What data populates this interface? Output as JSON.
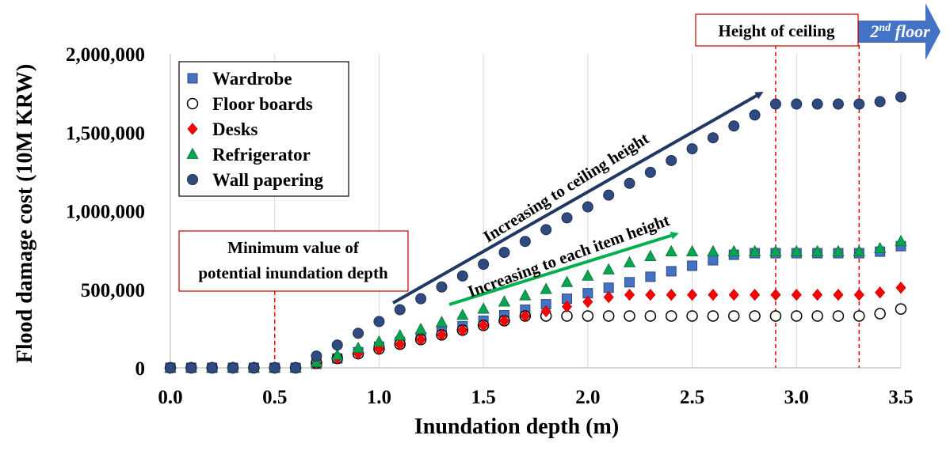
{
  "chart_data": {
    "type": "scatter",
    "xlabel": "Inundation depth (m)",
    "ylabel": "Flood damage cost (10M KRW)",
    "xlim": [
      0.0,
      3.5
    ],
    "ylim": [
      0,
      2000000
    ],
    "x_ticks": [
      "0.0",
      "0.5",
      "1.0",
      "1.5",
      "2.0",
      "2.5",
      "3.0",
      "3.5"
    ],
    "y_ticks": [
      "0",
      "500,000",
      "1,000,000",
      "1,500,000",
      "2,000,000"
    ],
    "x_tick_values": [
      0.0,
      0.5,
      1.0,
      1.5,
      2.0,
      2.5,
      3.0,
      3.5
    ],
    "y_tick_values": [
      0,
      500000,
      1000000,
      1500000,
      2000000
    ],
    "grid": "vertical",
    "legend_position": "top-left",
    "x": [
      0.0,
      0.1,
      0.2,
      0.3,
      0.4,
      0.5,
      0.6,
      0.7,
      0.8,
      0.9,
      1.0,
      1.1,
      1.2,
      1.3,
      1.4,
      1.5,
      1.6,
      1.7,
      1.8,
      1.9,
      2.0,
      2.1,
      2.2,
      2.3,
      2.4,
      2.5,
      2.6,
      2.7,
      2.8,
      2.9,
      3.0,
      3.1,
      3.2,
      3.3,
      3.4,
      3.5
    ],
    "series": [
      {
        "name": "Wardrobe",
        "marker": "square",
        "color": "#4472C4",
        "values": [
          0,
          0,
          0,
          0,
          0,
          0,
          0,
          25000,
          60000,
          100000,
          135000,
          165000,
          195000,
          230000,
          265000,
          300000,
          335000,
          370000,
          405000,
          440000,
          475000,
          510000,
          545000,
          580000,
          615000,
          650000,
          685000,
          720000,
          730000,
          730000,
          730000,
          730000,
          730000,
          730000,
          740000,
          775000
        ]
      },
      {
        "name": "Floor boards",
        "marker": "circle-open",
        "color": "#FFFFFF",
        "values": [
          0,
          0,
          0,
          0,
          0,
          0,
          0,
          30000,
          60000,
          90000,
          120000,
          150000,
          180000,
          210000,
          240000,
          270000,
          300000,
          330000,
          330000,
          330000,
          330000,
          330000,
          330000,
          330000,
          330000,
          330000,
          330000,
          330000,
          330000,
          330000,
          330000,
          330000,
          330000,
          330000,
          345000,
          375000
        ]
      },
      {
        "name": "Desks",
        "marker": "diamond",
        "color": "#FF0000",
        "values": [
          0,
          0,
          0,
          0,
          0,
          0,
          0,
          30000,
          60000,
          90000,
          120000,
          150000,
          180000,
          210000,
          240000,
          270000,
          300000,
          330000,
          360000,
          390000,
          420000,
          450000,
          465000,
          465000,
          465000,
          465000,
          465000,
          465000,
          465000,
          465000,
          465000,
          465000,
          465000,
          465000,
          480000,
          510000
        ]
      },
      {
        "name": "Refrigerator",
        "marker": "triangle",
        "color": "#00A650",
        "values": [
          0,
          0,
          0,
          0,
          0,
          0,
          0,
          35000,
          80000,
          125000,
          165000,
          205000,
          245000,
          290000,
          335000,
          375000,
          420000,
          460000,
          500000,
          545000,
          585000,
          625000,
          670000,
          710000,
          740000,
          740000,
          740000,
          740000,
          740000,
          740000,
          740000,
          740000,
          740000,
          740000,
          760000,
          805000
        ]
      },
      {
        "name": "Wall papering",
        "marker": "circle",
        "color": "#2F4A80",
        "values": [
          0,
          0,
          0,
          0,
          0,
          0,
          0,
          75000,
          145000,
          220000,
          295000,
          370000,
          440000,
          515000,
          585000,
          660000,
          735000,
          805000,
          880000,
          955000,
          1025000,
          1100000,
          1175000,
          1245000,
          1320000,
          1395000,
          1465000,
          1540000,
          1610000,
          1680000,
          1680000,
          1680000,
          1680000,
          1680000,
          1695000,
          1725000
        ]
      }
    ],
    "annotations": {
      "min_depth_label": [
        "Minimum value of",
        "potential inundation depth"
      ],
      "min_depth_x": 0.5,
      "ceiling_label": "Height of ceiling",
      "ceiling_lines_x": [
        2.9,
        3.3
      ],
      "second_floor_label_main": "2",
      "second_floor_label_sup": "nd",
      "second_floor_label_rest": " floor",
      "arrow_ceiling_label": "Increasing to ceiling height",
      "arrow_item_label": "Increasing to each item height",
      "arrow_ceiling_color": "#1F3864",
      "arrow_item_color": "#00B050"
    }
  }
}
